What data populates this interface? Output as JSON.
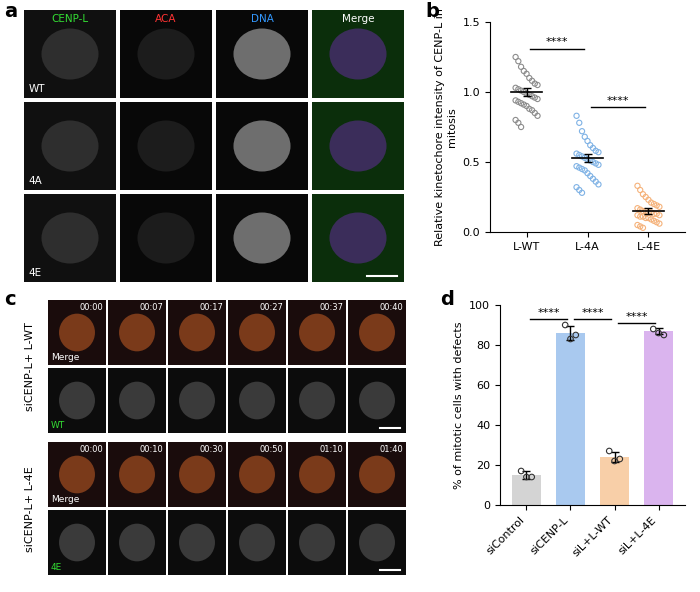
{
  "panel_labels": [
    "a",
    "b",
    "c",
    "d"
  ],
  "panel_a": {
    "channels": [
      {
        "name": "CENP-L",
        "color": "#33dd33"
      },
      {
        "name": "ACA",
        "color": "#ff3333"
      },
      {
        "name": "DNA",
        "color": "#3399ff"
      },
      {
        "name": "Merge",
        "color": "#ffffff"
      }
    ],
    "rows": [
      "WT",
      "4A",
      "4E"
    ]
  },
  "panel_c": {
    "merge_label": "Merge",
    "rows": [
      {
        "label": "siCENP-L+ L-WT",
        "channel": "WT",
        "times": [
          "00:00",
          "00:07",
          "00:17",
          "00:27",
          "00:37",
          "00:40"
        ]
      },
      {
        "label": "siCENP-L+ L-4E",
        "channel": "4E",
        "times": [
          "00:00",
          "00:10",
          "00:30",
          "00:50",
          "01:10",
          "01:40"
        ]
      }
    ]
  },
  "chart_data": [
    {
      "type": "scatter",
      "ylabel": "Relative kinetochore intensity of CENP-L in mitosis",
      "categories": [
        "L-WT",
        "L-4A",
        "L-4E"
      ],
      "colors": [
        "#8c8c8c",
        "#7fb2e5",
        "#f5b27a"
      ],
      "points": [
        [
          1.25,
          1.22,
          1.18,
          1.15,
          1.13,
          1.1,
          1.08,
          1.06,
          1.05,
          1.03,
          1.02,
          1.01,
          1.0,
          0.99,
          0.98,
          0.97,
          0.96,
          0.95,
          0.94,
          0.93,
          0.92,
          0.91,
          0.9,
          0.88,
          0.87,
          0.85,
          0.83,
          0.8,
          0.78,
          0.75
        ],
        [
          0.83,
          0.78,
          0.72,
          0.68,
          0.65,
          0.62,
          0.6,
          0.58,
          0.57,
          0.56,
          0.55,
          0.54,
          0.53,
          0.52,
          0.51,
          0.5,
          0.49,
          0.48,
          0.47,
          0.46,
          0.45,
          0.44,
          0.42,
          0.4,
          0.38,
          0.36,
          0.34,
          0.32,
          0.3,
          0.28
        ],
        [
          0.33,
          0.3,
          0.27,
          0.25,
          0.23,
          0.21,
          0.2,
          0.19,
          0.18,
          0.17,
          0.16,
          0.15,
          0.15,
          0.14,
          0.14,
          0.13,
          0.13,
          0.12,
          0.12,
          0.11,
          0.11,
          0.1,
          0.1,
          0.09,
          0.08,
          0.07,
          0.06,
          0.05,
          0.04,
          0.03
        ]
      ],
      "values": [
        1.0,
        0.53,
        0.15
      ],
      "errors": [
        0.03,
        0.03,
        0.02
      ],
      "ylim": [
        0,
        1.5
      ],
      "yticks": [
        {
          "value": 0,
          "label": "0.0"
        },
        {
          "value": 0.5,
          "label": "0.5"
        },
        {
          "value": 1.0,
          "label": "1.0"
        },
        {
          "value": 1.5,
          "label": "1.5"
        }
      ],
      "significance": [
        {
          "from": 0,
          "to": 1,
          "label": "****"
        },
        {
          "from": 1,
          "to": 2,
          "label": "****"
        }
      ]
    },
    {
      "type": "bar",
      "ylabel": "% of mitotic cells with defects",
      "categories": [
        "siControl",
        "siCENP-L",
        "siL+L-WT",
        "siL+L-4E"
      ],
      "colors": [
        "#d4d4d4",
        "#a9c9ef",
        "#f8cfa8",
        "#dab4ee"
      ],
      "values": [
        15,
        86,
        24,
        87
      ],
      "errors": [
        2,
        3.5,
        2.5,
        1.5
      ],
      "points": [
        [
          17,
          14,
          14
        ],
        [
          90,
          83,
          85
        ],
        [
          27,
          22,
          23
        ],
        [
          88,
          86,
          85
        ]
      ],
      "ylim": [
        0,
        100
      ],
      "yticks": [
        0,
        20,
        40,
        60,
        80,
        100
      ],
      "significance": [
        {
          "from": 0,
          "to": 1,
          "label": "****"
        },
        {
          "from": 1,
          "to": 2,
          "label": "****"
        },
        {
          "from": 2,
          "to": 3,
          "label": "****"
        }
      ]
    }
  ]
}
